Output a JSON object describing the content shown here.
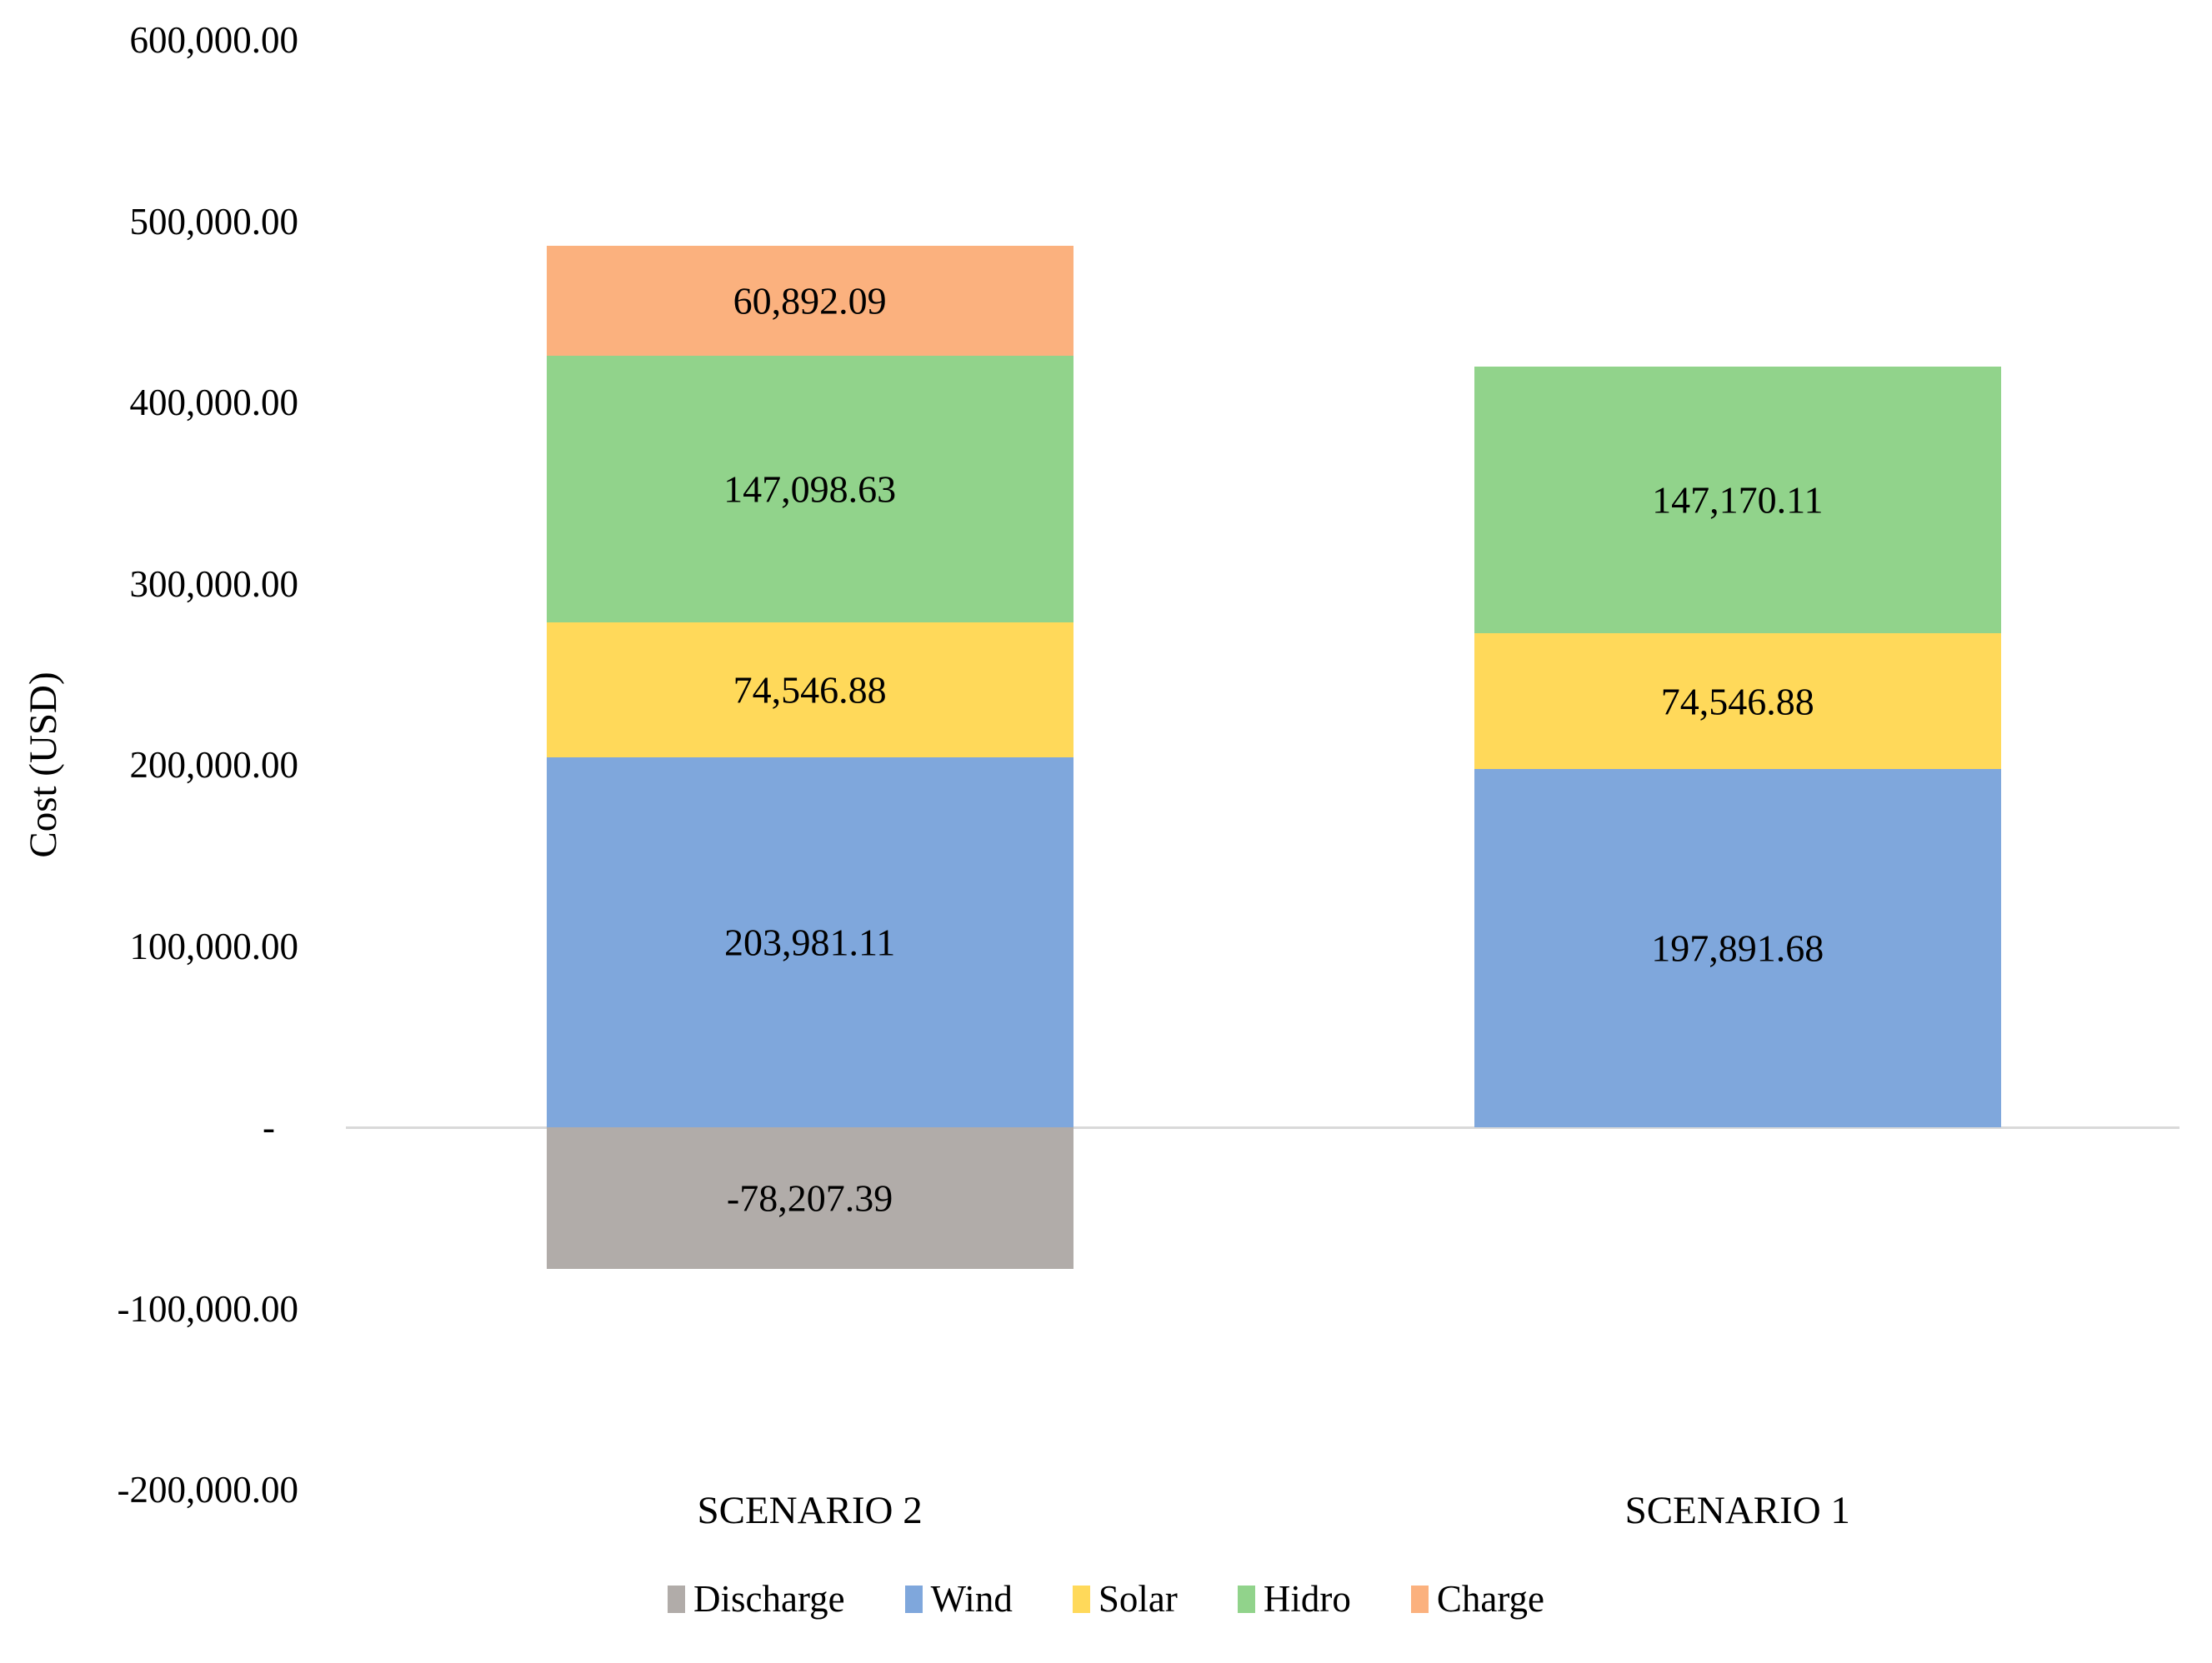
{
  "chart_data": {
    "type": "bar",
    "stacked": true,
    "title": "",
    "xlabel": "",
    "ylabel": "Cost (USD)",
    "categories": [
      "SCENARIO 2",
      "SCENARIO 1"
    ],
    "ylim": [
      -200000,
      600000
    ],
    "grid": "zero-line-only",
    "legend_position": "bottom",
    "series": [
      {
        "name": "Discharge",
        "color": "#B1ACA9",
        "values": [
          -78207.39,
          null
        ],
        "labels": [
          "-78,207.39",
          ""
        ]
      },
      {
        "name": "Wind",
        "color": "#7FA7DC",
        "values": [
          203981.11,
          197891.68
        ],
        "labels": [
          "203,981.11",
          "197,891.68"
        ]
      },
      {
        "name": "Solar",
        "color": "#FFD95A",
        "values": [
          74546.88,
          74546.88
        ],
        "labels": [
          "74,546.88",
          "74,546.88"
        ]
      },
      {
        "name": "Hidro",
        "color": "#91D38B",
        "values": [
          147098.63,
          147170.11
        ],
        "labels": [
          "147,098.63",
          "147,170.11"
        ]
      },
      {
        "name": "Charge",
        "color": "#FBB17E",
        "values": [
          60892.09,
          null
        ],
        "labels": [
          "60,892.09",
          ""
        ]
      }
    ],
    "yticks": [
      {
        "value": 600000,
        "label": "600,000.00"
      },
      {
        "value": 500000,
        "label": "500,000.00"
      },
      {
        "value": 400000,
        "label": "400,000.00"
      },
      {
        "value": 300000,
        "label": "300,000.00"
      },
      {
        "value": 200000,
        "label": "200,000.00"
      },
      {
        "value": 100000,
        "label": "100,000.00"
      },
      {
        "value": 0,
        "label": "-"
      },
      {
        "value": -100000,
        "label": "-100,000.00"
      },
      {
        "value": -200000,
        "label": "-200,000.00"
      }
    ],
    "gridline_color": "#D9D9D9"
  }
}
